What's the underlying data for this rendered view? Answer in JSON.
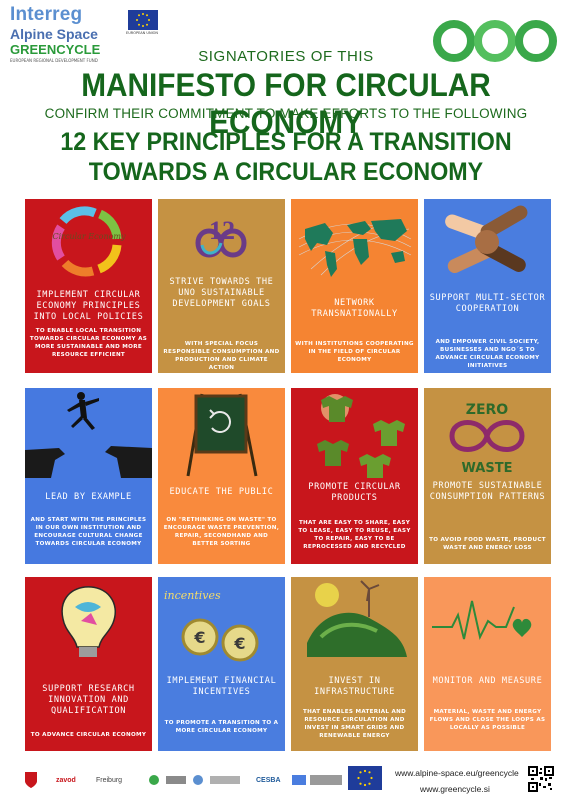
{
  "header": {
    "logo": {
      "brand": "Interreg",
      "programme": "Alpine Space",
      "project": "GREENCYCLE",
      "fund": "EUROPEAN REGIONAL DEVELOPMENT FUND",
      "eu_label": "EUROPEAN UNION"
    },
    "signatories": "SIGNATORIES OF THIS",
    "manifesto": "MANIFESTO FOR CIRCULAR ECONOMY",
    "confirm": "CONFIRM THEIR COMMITMENT TO MAKE EFFORTS TO THE FOLLOWING",
    "principles_line1": "12 KEY PRINCIPLES FOR A TRANSITION",
    "principles_line2": "TOWARDS A CIRCULAR ECONOMY"
  },
  "colors": {
    "title_green": "#15661c",
    "red": "#c8161c",
    "gold": "#c59243",
    "orange": "#f58432",
    "blue": "#4a7ddf",
    "light_orange": "#f9975a"
  },
  "principles": [
    {
      "title": "IMPLEMENT CIRCULAR ECONOMY PRINCIPLES INTO LOCAL POLICIES",
      "body": "TO ENABLE LOCAL TRANSITION TOWARDS CIRCULAR ECONOMY AS MORE SUSTAINABLE AND MORE RESOURCE EFFICIENT",
      "icon": "circular-economy-arrows",
      "art_text": "Circular Economy"
    },
    {
      "title": "STRIVE TOWARDS THE UNO SUSTAINABLE DEVELOPMENT GOALS",
      "body": "WITH SPECIAL FOCUS RESPONSIBLE CONSUMPTION AND PRODUCTION AND CLIMATE ACTION",
      "icon": "sdg-12-infinity",
      "art_text": "12"
    },
    {
      "title": "NETWORK TRANSNATIONALLY",
      "body": "WITH INSTITUTIONS COOPERATING IN THE FIELD OF CIRCULAR ECONOMY",
      "icon": "world-map"
    },
    {
      "title": "SUPPORT MULTI-SECTOR COOPERATION",
      "body": "AND EMPOWER CIVIL SOCIETY, BUSINESSES AND NGO´S TO ADVANCE CIRCULAR ECONOMY INITIATIVES",
      "icon": "joined-hands"
    },
    {
      "title": "LEAD BY EXAMPLE",
      "body": "AND START WITH THE PRINCIPLES IN OUR OWN INSTITUTION AND ENCOURAGE CULTURAL CHANGE TOWARDS CIRCULAR ECONOMY",
      "icon": "leap-gap"
    },
    {
      "title": "EDUCATE THE PUBLIC",
      "body": "ON \"RETHINKING ON WASTE\" TO ENCOURAGE WASTE PREVENTION, REPAIR, SECONDHAND AND BETTER SORTING",
      "icon": "chalkboard"
    },
    {
      "title": "PROMOTE CIRCULAR PRODUCTS",
      "body": "THAT ARE EASY TO SHARE, EASY TO LEASE, EASY TO REUSE, EASY TO REPAIR, EASY TO BE REPROCESSED AND RECYCLED",
      "icon": "green-shirts"
    },
    {
      "title": "PROMOTE SUSTAINABLE CONSUMPTION PATTERNS",
      "body": "TO AVOID FOOD WASTE, PRODUCT WASTE AND ENERGY LOSS",
      "icon": "zero-waste",
      "art_text_top": "ZERO",
      "art_text_bottom": "WASTE"
    },
    {
      "title": "SUPPORT RESEARCH INNOVATION AND QUALIFICATION",
      "body": "TO ADVANCE CIRCULAR ECONOMY",
      "icon": "lightbulb"
    },
    {
      "title": "IMPLEMENT FINANCIAL INCENTIVES",
      "body": "TO PROMOTE A TRANSITION TO A MORE CIRCULAR ECONOMY",
      "icon": "euro-coins",
      "art_text": "incentives"
    },
    {
      "title": "INVEST IN INFRASTRUCTURE",
      "body": "THAT ENABLES MATERIAL AND RESOURCE CIRCULATION AND INVEST IN SMART GRIDS AND RENEWABLE ENERGY",
      "icon": "green-landscape"
    },
    {
      "title": "MONITOR AND MEASURE",
      "body": "MATERIAL, WASTE AND ENERGY FLOWS AND CLOSE THE LOOPS AS LOCALLY AS POSSIBLE",
      "icon": "heartbeat-heart"
    }
  ],
  "footer": {
    "partners": [
      "zavod",
      "Freiburg",
      "CESBA"
    ],
    "url1": "www.alpine-space.eu/greencycle",
    "url2": "www.greencycle.si"
  }
}
